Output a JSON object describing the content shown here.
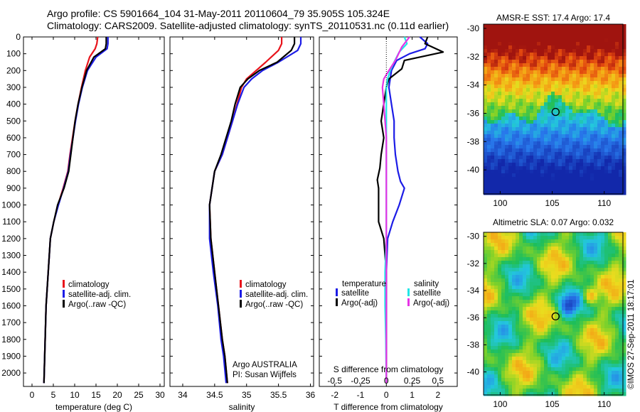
{
  "header": {
    "line1": "Argo profile: CS 5901664_104 31-May-2011 20110604_79 35.905S 105.324E",
    "line2": "Climatology: CARS2009. Satellite-adjusted climatology: synTS_20110531.nc (0.11d earlier)"
  },
  "colors": {
    "climatology": "#e8141c",
    "satellite": "#1c1ce6",
    "argo": "#000000",
    "salinity_sat": "#22e6e6",
    "salinity_argo": "#e633e6"
  },
  "chart_data": [
    {
      "id": "temperature",
      "type": "line",
      "xlabel": "temperature (deg C)",
      "xlim": [
        -2,
        31
      ],
      "xticks": [
        0,
        5,
        10,
        15,
        20,
        25,
        30
      ],
      "ylim": [
        2080,
        0
      ],
      "yticks": [
        0,
        100,
        200,
        300,
        400,
        500,
        600,
        700,
        800,
        900,
        1000,
        1100,
        1200,
        1300,
        1400,
        1500,
        1600,
        1700,
        1800,
        1900,
        2000
      ],
      "legend": [
        "climatology",
        "satellite-adj. clim.",
        "Argo(..raw -QC)"
      ],
      "series": [
        {
          "name": "climatology",
          "color": "#e8141c",
          "x": [
            15.4,
            15.2,
            14.8,
            13.5,
            12.5,
            11.6,
            10.8,
            10.1,
            9.5,
            8.9,
            8.4,
            7.3,
            6.1,
            5.1,
            4.3,
            3.8,
            3.3,
            2.8
          ],
          "y": [
            0,
            40,
            70,
            120,
            200,
            300,
            400,
            500,
            600,
            700,
            800,
            900,
            1000,
            1100,
            1200,
            1400,
            1600,
            2060
          ]
        },
        {
          "name": "satellite-adj. clim.",
          "color": "#1c1ce6",
          "x": [
            17.8,
            17.8,
            17.6,
            15.0,
            13.0,
            11.8,
            10.9,
            10.2,
            9.6,
            9.0,
            8.5,
            7.4,
            6.2,
            5.1,
            4.3,
            3.8,
            3.3,
            2.8
          ],
          "y": [
            0,
            40,
            70,
            120,
            200,
            300,
            400,
            500,
            600,
            700,
            800,
            900,
            1000,
            1100,
            1200,
            1400,
            1600,
            2060
          ]
        },
        {
          "name": "Argo(..raw -QC)",
          "color": "#000000",
          "x": [
            17.4,
            17.4,
            17.2,
            14.5,
            12.8,
            11.7,
            10.8,
            10.1,
            9.6,
            9.1,
            8.6,
            7.5,
            6.0,
            5.1,
            4.3,
            3.8,
            3.3,
            2.8
          ],
          "y": [
            0,
            40,
            70,
            120,
            200,
            300,
            400,
            500,
            600,
            700,
            800,
            900,
            1000,
            1100,
            1200,
            1400,
            1600,
            2060
          ]
        }
      ]
    },
    {
      "id": "salinity",
      "type": "line",
      "xlabel": "salinity",
      "xlim": [
        33.8,
        36.05
      ],
      "xticks": [
        34,
        34.5,
        35,
        35.5,
        36
      ],
      "xtick_labels": [
        "34",
        "34.5",
        "35",
        "35.5",
        "36"
      ],
      "ylim": [
        2080,
        0
      ],
      "legend": [
        "climatology",
        "satellite-adj. clim.",
        "Argo(..raw -QC)"
      ],
      "notes": [
        "Argo AUSTRALIA",
        "PI: Susan Wijffels"
      ],
      "series": [
        {
          "name": "climatology",
          "color": "#e8141c",
          "x": [
            35.55,
            35.55,
            35.5,
            35.3,
            35.15,
            35.0,
            34.92,
            34.85,
            34.78,
            34.7,
            34.62,
            34.5,
            34.42,
            34.44,
            34.5,
            34.56,
            34.62,
            34.66,
            34.7
          ],
          "y": [
            0,
            40,
            80,
            150,
            200,
            250,
            300,
            400,
            500,
            600,
            700,
            800,
            1000,
            1200,
            1400,
            1600,
            1800,
            1900,
            2060
          ]
        },
        {
          "name": "satellite-adj. clim.",
          "color": "#1c1ce6",
          "x": [
            35.85,
            35.85,
            35.8,
            35.5,
            35.25,
            35.08,
            34.96,
            34.86,
            34.78,
            34.7,
            34.62,
            34.5,
            34.42,
            34.42,
            34.48,
            34.55,
            34.6,
            34.64,
            34.68
          ],
          "y": [
            0,
            40,
            80,
            150,
            200,
            250,
            300,
            400,
            500,
            600,
            700,
            800,
            1000,
            1200,
            1400,
            1600,
            1800,
            1900,
            2060
          ]
        },
        {
          "name": "Argo(..raw -QC)",
          "color": "#000000",
          "x": [
            35.75,
            35.75,
            35.7,
            35.48,
            35.2,
            35.02,
            34.9,
            34.82,
            34.76,
            34.68,
            34.6,
            34.5,
            34.42,
            34.44,
            34.5,
            34.56,
            34.62,
            34.66,
            34.7
          ],
          "y": [
            0,
            40,
            80,
            150,
            200,
            250,
            300,
            400,
            500,
            600,
            700,
            800,
            1000,
            1200,
            1400,
            1600,
            1800,
            1900,
            2060
          ]
        }
      ]
    },
    {
      "id": "difference",
      "type": "line",
      "xlabel": "T difference from climatology",
      "x2label": "S difference from climatology",
      "xlim": [
        -2.6,
        2.75
      ],
      "xticks": [
        -2,
        -1,
        0,
        1,
        2
      ],
      "x2ticks": [
        -0.5,
        -0.25,
        0,
        0.25,
        0.5
      ],
      "x2tick_labels": [
        "-0.5",
        "-0.25",
        "0",
        "0.25",
        "0.5"
      ],
      "ylim": [
        2080,
        0
      ],
      "legend_temperature": "temperature",
      "legend_salinity": "salinity",
      "legend_satellite": "satellite",
      "legend_argo": "Argo(-adj)",
      "series": [
        {
          "name": "satellite",
          "color": "#1c1ce6",
          "x": [
            1.3,
            1.6,
            1.5,
            0.9,
            0.4,
            0.2,
            0.1,
            0.2,
            0.3,
            0.3,
            0.35,
            0.45,
            0.55,
            0.7,
            0.5,
            0.25,
            0.05,
            0.0,
            0.0,
            0.0,
            0.0
          ],
          "y": [
            0,
            40,
            70,
            100,
            140,
            200,
            300,
            400,
            500,
            600,
            700,
            800,
            860,
            900,
            1000,
            1100,
            1200,
            1400,
            1600,
            1800,
            2060
          ]
        },
        {
          "name": "Argo(-adj)",
          "color": "#000000",
          "x": [
            1.6,
            1.5,
            2.2,
            0.7,
            0.6,
            0.1,
            0.0,
            -0.1,
            -0.2,
            -0.1,
            -0.2,
            -0.25,
            -0.35,
            -0.3,
            -0.3,
            -0.3,
            -0.1,
            0.0,
            0.0,
            0.0,
            0.0
          ],
          "y": [
            0,
            40,
            90,
            140,
            190,
            250,
            300,
            400,
            500,
            600,
            700,
            780,
            850,
            900,
            1000,
            1100,
            1200,
            1400,
            1600,
            1800,
            2060
          ]
        },
        {
          "name": "salinity satellite",
          "color": "#22e6e6",
          "x": [
            0.7,
            0.8,
            0.5,
            0.3,
            0.15,
            0.05,
            0.0,
            0.0,
            0.0,
            0.0,
            0.0,
            0.0,
            0.0,
            0.0,
            0.0,
            -0.05,
            -0.05,
            -0.02,
            0.0
          ],
          "y": [
            0,
            40,
            90,
            150,
            200,
            250,
            300,
            400,
            500,
            600,
            700,
            800,
            900,
            1000,
            1200,
            1400,
            1600,
            1800,
            2060
          ]
        },
        {
          "name": "salinity Argo(-adj)",
          "color": "#e633e6",
          "x": [
            0.9,
            0.6,
            0.35,
            0.1,
            -0.1,
            -0.15,
            -0.1,
            -0.05,
            0.0,
            0.0,
            0.0,
            0.0,
            0.0,
            0.0,
            0.0
          ],
          "y": [
            0,
            60,
            140,
            200,
            250,
            300,
            400,
            500,
            600,
            800,
            1000,
            1200,
            1400,
            1800,
            2060
          ]
        }
      ]
    }
  ],
  "maps": [
    {
      "id": "sst",
      "title": "AMSR-E SST: 17.4 Argo: 17.4",
      "yticks": [
        "-30",
        "-32",
        "-34",
        "-36",
        "-38",
        "-40"
      ],
      "xticks": [
        "100",
        "105",
        "110"
      ],
      "marker_lon": 105.324,
      "marker_lat": -35.905
    },
    {
      "id": "sla",
      "title": "Altimetric SLA: 0.07 Argo: 0.032",
      "yticks": [
        "-30",
        "-32",
        "-34",
        "-36",
        "-38",
        "-40"
      ],
      "xticks": [
        "100",
        "105",
        "110"
      ],
      "marker_lon": 105.324,
      "marker_lat": -35.905
    }
  ],
  "credit": "©IMOS 27-Sep-2011 18:17:01"
}
